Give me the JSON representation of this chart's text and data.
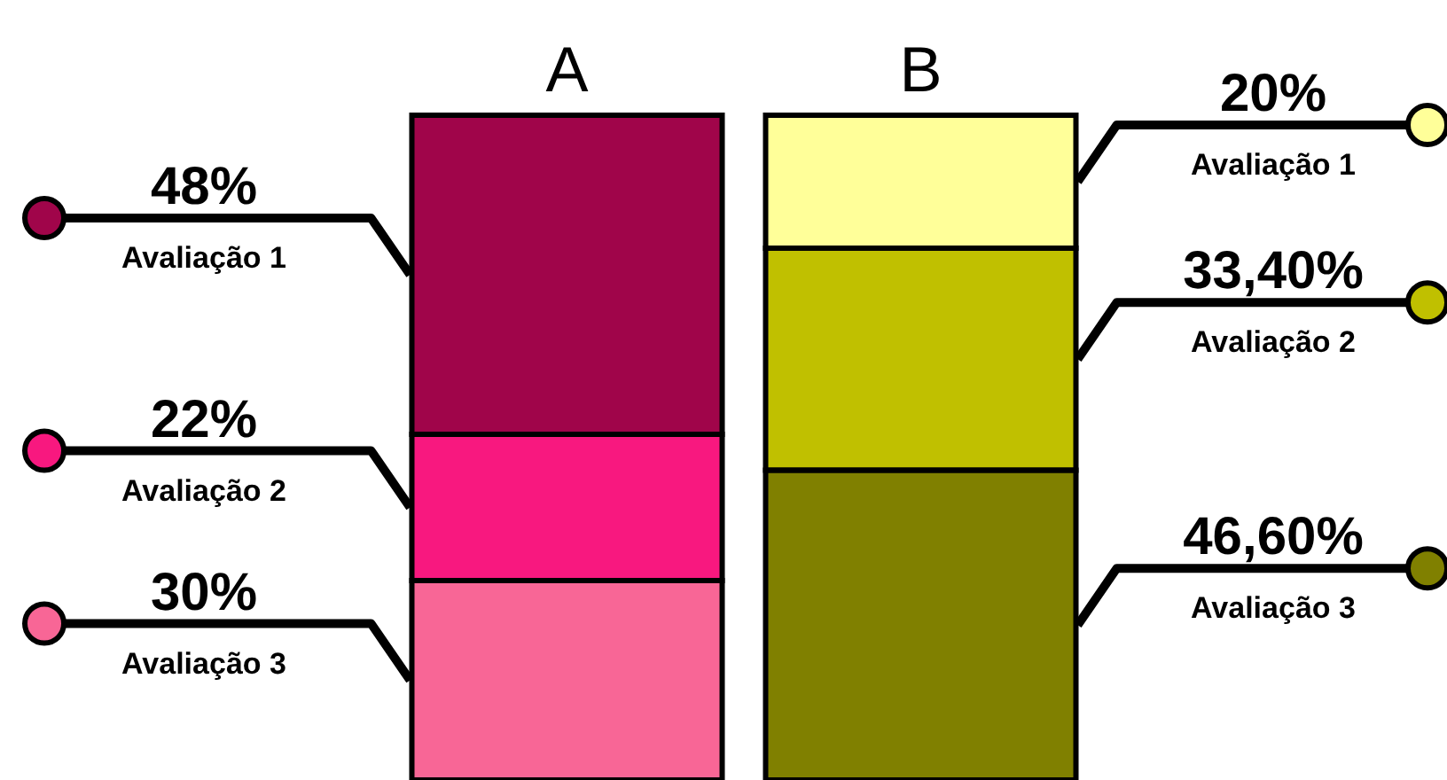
{
  "chart_data": {
    "type": "bar",
    "stacked": true,
    "categories": [
      "A",
      "B"
    ],
    "series": [
      {
        "name": "Avaliação 3",
        "colors": [
          "#f86696",
          "#808000"
        ],
        "values": [
          30,
          46.6
        ],
        "value_labels": [
          "30%",
          "46,60%"
        ]
      },
      {
        "name": "Avaliação 2",
        "colors": [
          "#f8187f",
          "#c0c000"
        ],
        "values": [
          22,
          33.4
        ],
        "value_labels": [
          "22%",
          "33,40%"
        ]
      },
      {
        "name": "Avaliação 1",
        "colors": [
          "#a0054a",
          "#ffff99"
        ],
        "values": [
          48,
          20
        ],
        "value_labels": [
          "48%",
          "20%"
        ]
      }
    ]
  }
}
